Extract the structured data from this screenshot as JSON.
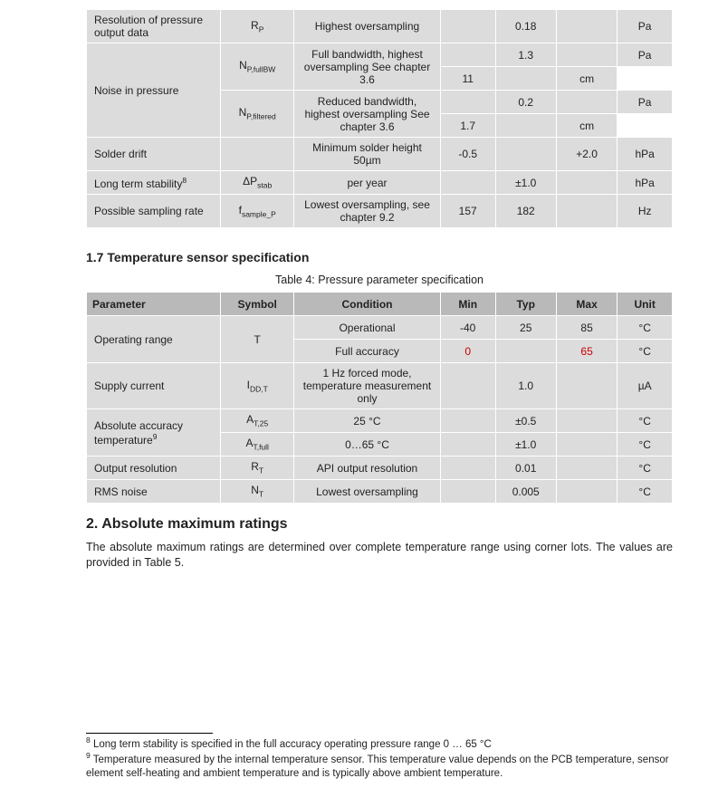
{
  "table1": {
    "col_widths": [
      "22%",
      "12%",
      "24%",
      "9%",
      "10%",
      "10%",
      "9%"
    ],
    "rows": [
      {
        "param": "Resolution of pressure output data",
        "param_rowspan": 1,
        "symbol": "R<sub>P</sub>",
        "cond": "Highest oversampling",
        "min": "",
        "typ": "0.18",
        "max": "",
        "unit": "Pa"
      },
      {
        "param": "Noise in pressure",
        "param_rowspan": 4,
        "symbol": "N<sub>P,fullBW</sub>",
        "symbol_rowspan": 2,
        "cond": "Full bandwidth, highest oversampling See chapter 3.6",
        "cond_rowspan": 2,
        "min": "",
        "typ": "1.3",
        "max": "",
        "unit": "Pa"
      },
      {
        "typ": "11",
        "unit": "cm"
      },
      {
        "symbol": "N<sub>P,filtered</sub>",
        "symbol_rowspan": 2,
        "cond": "Reduced bandwidth, highest oversampling See chapter 3.6",
        "cond_rowspan": 2,
        "min": "",
        "typ": "0.2",
        "max": "",
        "unit": "Pa"
      },
      {
        "typ": "1.7",
        "unit": "cm"
      },
      {
        "param": "Solder drift",
        "param_rowspan": 1,
        "symbol": "",
        "cond": "Minimum solder height 50µm",
        "min": "-0.5",
        "typ": "",
        "max": "+2.0",
        "unit": "hPa"
      },
      {
        "param": "Long term stability<sup>8</sup>",
        "param_rowspan": 1,
        "symbol": "ΔP<sub>stab</sub>",
        "cond": "per year",
        "min": "",
        "typ": "±1.0",
        "max": "",
        "unit": "hPa"
      },
      {
        "param": "Possible sampling rate",
        "param_rowspan": 1,
        "symbol": "f<sub>sample_P</sub>",
        "cond": "Lowest oversampling, see chapter 9.2",
        "min": "157",
        "typ": "182",
        "max": "",
        "unit": "Hz"
      }
    ]
  },
  "section_1_7": "1.7 Temperature sensor specification",
  "table2_caption": "Table 4: Pressure parameter specification",
  "table2": {
    "col_widths": [
      "22%",
      "12%",
      "24%",
      "9%",
      "10%",
      "10%",
      "9%"
    ],
    "headers": [
      "Parameter",
      "Symbol",
      "Condition",
      "Min",
      "Typ",
      "Max",
      "Unit"
    ],
    "rows": [
      {
        "param": "Operating range",
        "param_rowspan": 2,
        "symbol": "T",
        "symbol_rowspan": 2,
        "cond": "Operational",
        "min": "-40",
        "typ": "25",
        "max": "85",
        "unit": "°C"
      },
      {
        "cond": "Full accuracy",
        "min": "0",
        "min_red": true,
        "typ": "",
        "max": "65",
        "max_red": true,
        "unit": "°C"
      },
      {
        "param": "Supply current",
        "param_rowspan": 1,
        "symbol": "I<sub>DD,T</sub>",
        "cond": "1 Hz forced mode, temperature measurement only",
        "min": "",
        "typ": "1.0",
        "max": "",
        "unit": "µA"
      },
      {
        "param": "Absolute accuracy temperature<sup>9</sup>",
        "param_rowspan": 2,
        "symbol": "A<sub>T,25</sub>",
        "cond": "25 °C",
        "min": "",
        "typ": "±0.5",
        "max": "",
        "unit": "°C"
      },
      {
        "symbol": "A<sub>T,full</sub>",
        "cond": "0…65 °C",
        "min": "",
        "typ": "±1.0",
        "max": "",
        "unit": "°C"
      },
      {
        "param": "Output resolution",
        "param_rowspan": 1,
        "symbol": "R<sub>T</sub>",
        "cond": "API output resolution",
        "min": "",
        "typ": "0.01",
        "max": "",
        "unit": "°C"
      },
      {
        "param": "RMS noise",
        "param_rowspan": 1,
        "symbol": "N<sub>T</sub>",
        "cond": "Lowest oversampling",
        "min": "",
        "typ": "0.005",
        "max": "",
        "unit": "°C"
      }
    ]
  },
  "section_2": "2. Absolute maximum ratings",
  "body_text": "The absolute maximum ratings are determined over complete temperature range using corner lots. The values are provided in Table 5.",
  "footnote8": "Long term stability is specified in the full accuracy operating pressure range 0 … 65 °C",
  "footnote9": "Temperature measured by the internal temperature sensor. This temperature value depends on the PCB temperature, sensor element self-heating and ambient temperature and is typically above ambient temperature."
}
